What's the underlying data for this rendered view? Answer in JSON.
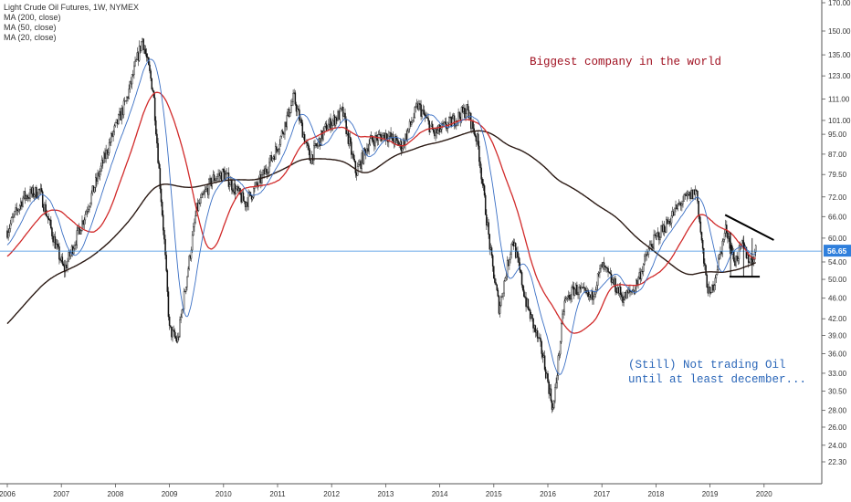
{
  "chart_data": {
    "type": "candlestick",
    "title": "Light Crude Oil Futures, 1W, NYMEX",
    "indicators": [
      "MA (200, close)",
      "MA (50, close)",
      "MA (20, close)"
    ],
    "annotations": {
      "top": "Biggest company in the world",
      "bottom_line1": "(Still) Not trading Oil",
      "bottom_line2": "until at least december..."
    },
    "last_price": "56.65",
    "x_ticks": [
      "2006",
      "2007",
      "2008",
      "2009",
      "2010",
      "2011",
      "2012",
      "2013",
      "2014",
      "2015",
      "2016",
      "2017",
      "2018",
      "2019",
      "2020"
    ],
    "y_ticks": [
      "170.00",
      "150.00",
      "135.00",
      "123.00",
      "111.00",
      "101.00",
      "95.00",
      "87.00",
      "79.50",
      "72.00",
      "66.00",
      "60.00",
      "54.00",
      "50.00",
      "46.00",
      "42.00",
      "39.00",
      "36.00",
      "33.00",
      "30.50",
      "28.00",
      "26.00",
      "24.00",
      "22.30"
    ],
    "y_scale": "log",
    "price_path": [
      [
        2006.0,
        62
      ],
      [
        2006.3,
        72
      ],
      [
        2006.6,
        74
      ],
      [
        2006.9,
        58
      ],
      [
        2007.05,
        52
      ],
      [
        2007.4,
        65
      ],
      [
        2007.7,
        80
      ],
      [
        2007.95,
        95
      ],
      [
        2008.2,
        110
      ],
      [
        2008.5,
        145
      ],
      [
        2008.7,
        115
      ],
      [
        2008.9,
        60
      ],
      [
        2009.0,
        40
      ],
      [
        2009.15,
        38
      ],
      [
        2009.5,
        68
      ],
      [
        2009.8,
        78
      ],
      [
        2010.0,
        80
      ],
      [
        2010.4,
        70
      ],
      [
        2010.7,
        78
      ],
      [
        2011.0,
        90
      ],
      [
        2011.3,
        112
      ],
      [
        2011.6,
        85
      ],
      [
        2011.9,
        98
      ],
      [
        2012.2,
        105
      ],
      [
        2012.45,
        80
      ],
      [
        2012.7,
        92
      ],
      [
        2013.0,
        95
      ],
      [
        2013.3,
        90
      ],
      [
        2013.6,
        108
      ],
      [
        2013.9,
        95
      ],
      [
        2014.2,
        100
      ],
      [
        2014.5,
        106
      ],
      [
        2014.7,
        92
      ],
      [
        2014.95,
        55
      ],
      [
        2015.1,
        44
      ],
      [
        2015.35,
        60
      ],
      [
        2015.6,
        45
      ],
      [
        2015.9,
        36
      ],
      [
        2016.1,
        28
      ],
      [
        2016.3,
        45
      ],
      [
        2016.5,
        48
      ],
      [
        2016.8,
        46
      ],
      [
        2017.0,
        53
      ],
      [
        2017.4,
        46
      ],
      [
        2017.6,
        48
      ],
      [
        2017.9,
        58
      ],
      [
        2018.2,
        64
      ],
      [
        2018.45,
        70
      ],
      [
        2018.75,
        74
      ],
      [
        2018.9,
        52
      ],
      [
        2019.0,
        46
      ],
      [
        2019.3,
        63
      ],
      [
        2019.45,
        54
      ],
      [
        2019.6,
        58
      ],
      [
        2019.75,
        54
      ],
      [
        2019.85,
        57
      ]
    ]
  }
}
